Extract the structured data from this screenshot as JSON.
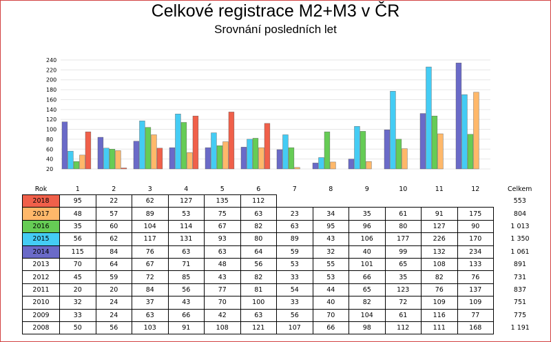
{
  "title": "Celkové registrace M2+M3 v ČR",
  "subtitle": "Srovnání posledních let",
  "table": {
    "year_header": "Rok",
    "total_header": "Celkem",
    "months": [
      "1",
      "2",
      "3",
      "4",
      "5",
      "6",
      "7",
      "8",
      "9",
      "10",
      "11",
      "12"
    ],
    "rows": [
      {
        "year": "2018",
        "values": [
          "95",
          "22",
          "62",
          "127",
          "135",
          "112",
          "",
          "",
          "",
          "",
          "",
          ""
        ],
        "total": "553",
        "color": "#f0604a"
      },
      {
        "year": "2017",
        "values": [
          "48",
          "57",
          "89",
          "53",
          "75",
          "63",
          "23",
          "34",
          "35",
          "61",
          "91",
          "175"
        ],
        "total": "804",
        "color": "#ffb86a"
      },
      {
        "year": "2016",
        "values": [
          "35",
          "60",
          "104",
          "114",
          "67",
          "82",
          "63",
          "95",
          "96",
          "80",
          "127",
          "90"
        ],
        "total": "1 013",
        "color": "#66cc55"
      },
      {
        "year": "2015",
        "values": [
          "56",
          "62",
          "117",
          "131",
          "93",
          "80",
          "89",
          "43",
          "106",
          "177",
          "226",
          "170"
        ],
        "total": "1 350",
        "color": "#44ccf4"
      },
      {
        "year": "2014",
        "values": [
          "115",
          "84",
          "76",
          "63",
          "63",
          "64",
          "59",
          "32",
          "40",
          "99",
          "132",
          "234"
        ],
        "total": "1 061",
        "color": "#6a6ac8"
      },
      {
        "year": "2013",
        "values": [
          "70",
          "64",
          "67",
          "71",
          "48",
          "56",
          "53",
          "55",
          "101",
          "65",
          "108",
          "133"
        ],
        "total": "891",
        "color": ""
      },
      {
        "year": "2012",
        "values": [
          "45",
          "59",
          "72",
          "85",
          "43",
          "82",
          "33",
          "53",
          "66",
          "35",
          "82",
          "76"
        ],
        "total": "731",
        "color": ""
      },
      {
        "year": "2011",
        "values": [
          "20",
          "20",
          "84",
          "56",
          "77",
          "81",
          "54",
          "44",
          "65",
          "123",
          "76",
          "137"
        ],
        "total": "837",
        "color": ""
      },
      {
        "year": "2010",
        "values": [
          "32",
          "24",
          "37",
          "43",
          "70",
          "100",
          "33",
          "40",
          "82",
          "72",
          "109",
          "109"
        ],
        "total": "751",
        "color": ""
      },
      {
        "year": "2009",
        "values": [
          "33",
          "24",
          "63",
          "66",
          "42",
          "63",
          "56",
          "70",
          "104",
          "61",
          "116",
          "77"
        ],
        "total": "775",
        "color": ""
      },
      {
        "year": "2008",
        "values": [
          "50",
          "56",
          "103",
          "91",
          "108",
          "121",
          "107",
          "66",
          "98",
          "112",
          "111",
          "168"
        ],
        "total": "1 191",
        "color": ""
      }
    ]
  },
  "chart_data": {
    "type": "bar",
    "categories": [
      "1",
      "2",
      "3",
      "4",
      "5",
      "6",
      "7",
      "8",
      "9",
      "10",
      "11",
      "12"
    ],
    "yticks": [
      20,
      40,
      60,
      80,
      100,
      120,
      140,
      160,
      180,
      200,
      220,
      240
    ],
    "ylim": [
      20,
      240
    ],
    "grid": true,
    "series": [
      {
        "name": "2014",
        "color": "#6a6ac8",
        "values": [
          115,
          84,
          76,
          63,
          63,
          64,
          59,
          32,
          40,
          99,
          132,
          234
        ]
      },
      {
        "name": "2015",
        "color": "#44ccf4",
        "values": [
          56,
          62,
          117,
          131,
          93,
          80,
          89,
          43,
          106,
          177,
          226,
          170
        ]
      },
      {
        "name": "2016",
        "color": "#66cc55",
        "values": [
          35,
          60,
          104,
          114,
          67,
          82,
          63,
          95,
          96,
          80,
          127,
          90
        ]
      },
      {
        "name": "2017",
        "color": "#ffb86a",
        "values": [
          48,
          57,
          89,
          53,
          75,
          63,
          23,
          34,
          35,
          61,
          91,
          175
        ]
      },
      {
        "name": "2018",
        "color": "#f0604a",
        "values": [
          95,
          22,
          62,
          127,
          135,
          112,
          null,
          null,
          null,
          null,
          null,
          null
        ]
      }
    ]
  }
}
